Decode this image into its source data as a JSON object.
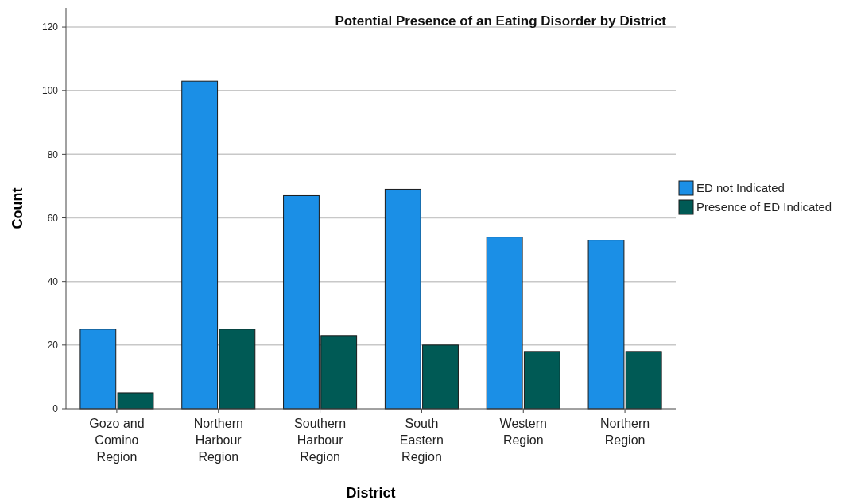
{
  "chart_data": {
    "type": "bar",
    "title": "Potential Presence of an Eating Disorder by District",
    "xlabel": "District",
    "ylabel": "Count",
    "categories": [
      "Gozo and Comino Region",
      "Northern Harbour Region",
      "Southern Harbour Region",
      "South Eastern Region",
      "Western Region",
      "Northern Region"
    ],
    "series": [
      {
        "name": "ED not Indicated",
        "color": "#1b8fe6",
        "values": [
          25,
          103,
          67,
          69,
          54,
          53
        ]
      },
      {
        "name": "Presence of ED Indicated",
        "color": "#005a55",
        "values": [
          5,
          25,
          23,
          20,
          18,
          18
        ]
      }
    ],
    "ylim": [
      0,
      126
    ],
    "yticks": [
      0,
      20,
      40,
      60,
      80,
      100,
      120
    ],
    "grid": "y",
    "legend": "right"
  }
}
